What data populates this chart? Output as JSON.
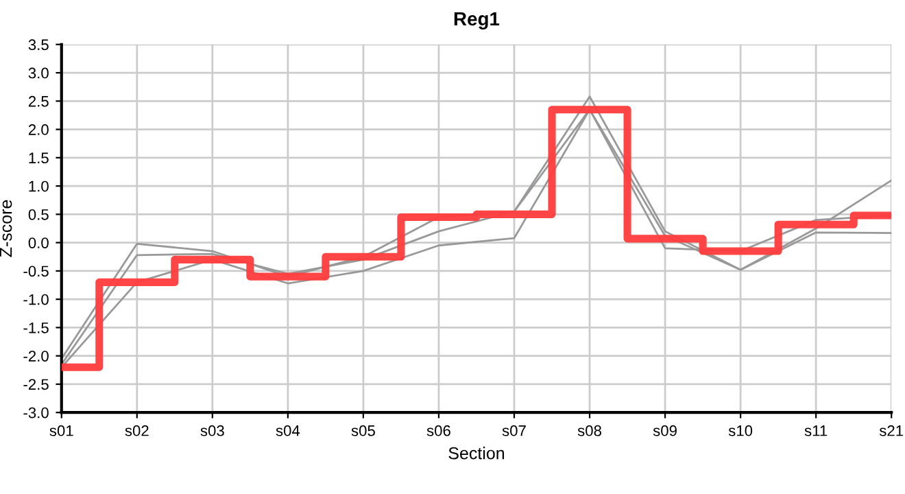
{
  "chart_data": {
    "type": "line",
    "title": "Reg1",
    "xlabel": "Section",
    "ylabel": "Z-score",
    "categories": [
      "s01",
      "s02",
      "s03",
      "s04",
      "s05",
      "s06",
      "s07",
      "s08",
      "s09",
      "s10",
      "s11",
      "s21"
    ],
    "series": [
      {
        "color": "#999999",
        "values": [
          -2.05,
          -0.02,
          -0.15,
          -0.6,
          -0.25,
          0.45,
          0.55,
          2.58,
          0.2,
          -0.48,
          0.25,
          1.1
        ]
      },
      {
        "color": "#999999",
        "values": [
          -2.15,
          -0.22,
          -0.2,
          -0.55,
          -0.3,
          0.2,
          0.55,
          2.35,
          -0.1,
          -0.15,
          0.4,
          0.48
        ]
      },
      {
        "color": "#999999",
        "values": [
          -2.2,
          -0.7,
          -0.3,
          -0.72,
          -0.5,
          -0.05,
          0.08,
          2.35,
          0.12,
          -0.48,
          0.18,
          0.17
        ]
      },
      {
        "type": "step",
        "color": "#ff3b3b",
        "values": [
          -2.2,
          -0.7,
          -0.3,
          -0.6,
          -0.25,
          0.45,
          0.5,
          2.35,
          0.07,
          -0.15,
          0.32,
          0.48
        ]
      }
    ],
    "ylim": [
      -3.0,
      3.5
    ],
    "yticks": [
      {
        "value": -3.0,
        "label": "-3.0"
      },
      {
        "value": -2.5,
        "label": "-2.5"
      },
      {
        "value": -2.0,
        "label": "-2.0"
      },
      {
        "value": -1.5,
        "label": "-1.5"
      },
      {
        "value": -1.0,
        "label": "-1.0"
      },
      {
        "value": -0.5,
        "label": "-0.5"
      },
      {
        "value": 0.0,
        "label": "0.0"
      },
      {
        "value": 0.5,
        "label": "0.5"
      },
      {
        "value": 1.0,
        "label": "1.0"
      },
      {
        "value": 1.5,
        "label": "1.5"
      },
      {
        "value": 2.0,
        "label": "2.0"
      },
      {
        "value": 2.5,
        "label": "2.5"
      },
      {
        "value": 3.0,
        "label": "3.0"
      },
      {
        "value": 3.5,
        "label": "3.5"
      }
    ],
    "grid": true,
    "marker": "none",
    "line_style": "solid"
  }
}
